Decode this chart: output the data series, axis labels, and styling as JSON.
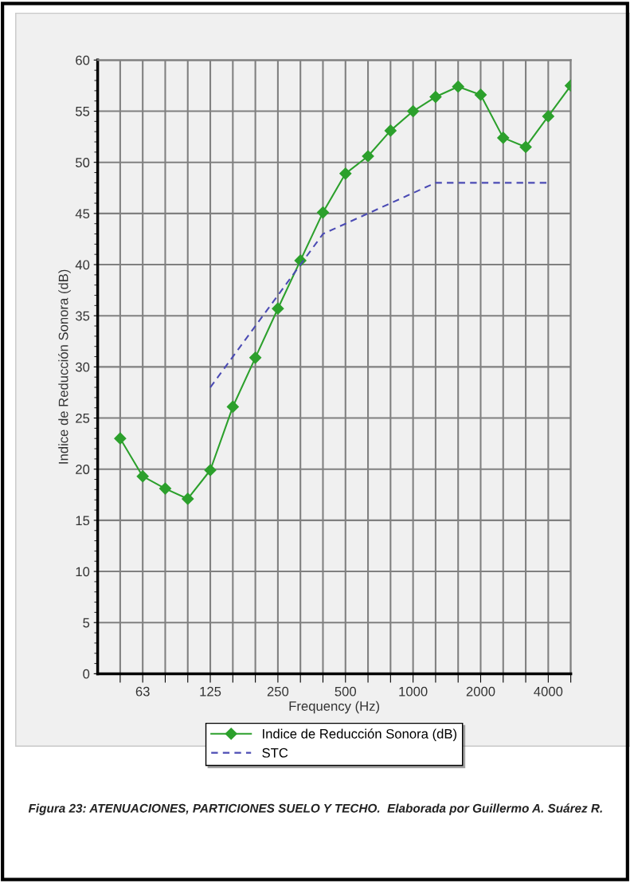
{
  "chart_data": {
    "type": "line",
    "xlabel": "Frequency (Hz)",
    "ylabel": "Indice de Reducción Sonora (dB)",
    "categories": [
      null,
      "63",
      null,
      null,
      "125",
      null,
      null,
      "250",
      null,
      null,
      "500",
      null,
      null,
      "1000",
      null,
      null,
      "2000",
      null,
      null,
      "4000",
      null
    ],
    "series": [
      {
        "name": "Indice de Reducción Sonora (dB)",
        "color": "#2ca02c",
        "marker": "diamond",
        "line_style": "solid",
        "values": [
          23,
          19.3,
          18.1,
          17.1,
          19.9,
          26.1,
          30.9,
          35.7,
          40.4,
          45.1,
          48.9,
          50.6,
          53.1,
          55.0,
          56.4,
          57.4,
          56.6,
          52.4,
          51.5,
          54.5,
          57.5
        ]
      },
      {
        "name": "STC",
        "color": "#4b4bb4",
        "marker": "none",
        "line_style": "dashed",
        "values": [
          null,
          null,
          null,
          null,
          28,
          31,
          34,
          37,
          40,
          43,
          44,
          45,
          46,
          47,
          48,
          48,
          48,
          48,
          48,
          48,
          null
        ]
      }
    ],
    "ylim": [
      0,
      60
    ],
    "yticks": [
      0,
      5,
      10,
      15,
      20,
      25,
      30,
      35,
      40,
      45,
      50,
      55,
      60
    ],
    "grid": true,
    "legend": "bottom",
    "annotations": [
      "Figura 23: ATENUACIONES, PARTICIONES SUELO Y TECHO.  Elaborada por Guillermo A. Suárez R."
    ]
  }
}
